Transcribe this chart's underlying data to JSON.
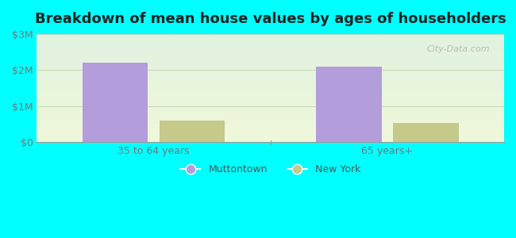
{
  "title": "Breakdown of mean house values by ages of householders",
  "categories": [
    "35 to 64 years",
    "65 years+"
  ],
  "series": [
    {
      "label": "Muttontown",
      "values": [
        2200000,
        2100000
      ],
      "color": "#b39ddb"
    },
    {
      "label": "New York",
      "values": [
        600000,
        540000
      ],
      "color": "#c5c98a"
    }
  ],
  "ylim": [
    0,
    3000000
  ],
  "yticks": [
    0,
    1000000,
    2000000,
    3000000
  ],
  "ytick_labels": [
    "$0",
    "$1M",
    "$2M",
    "$3M"
  ],
  "bar_width": 0.28,
  "background_outer": "#00ffff",
  "grid_color": "#c8d8b8",
  "title_fontsize": 13,
  "axis_color": "#999999",
  "tick_color": "#777777",
  "watermark": "City-Data.com",
  "group_positions": [
    0.5,
    1.5
  ]
}
